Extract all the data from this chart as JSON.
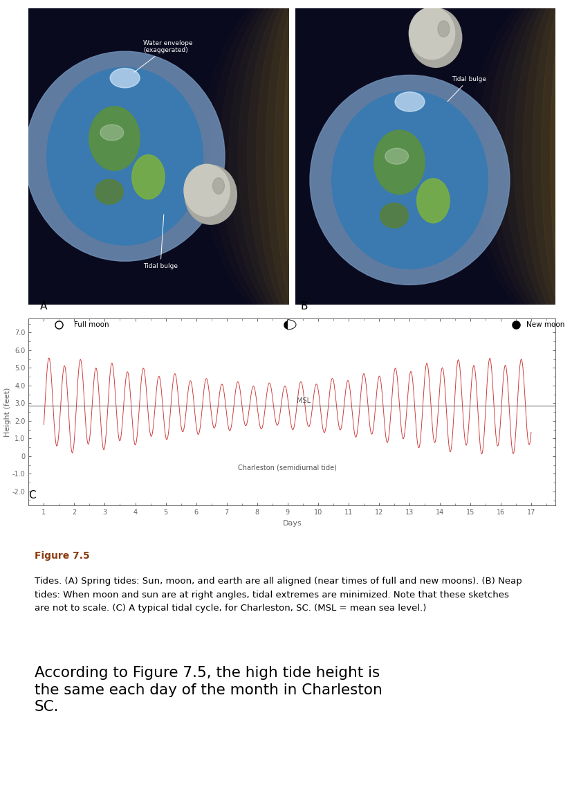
{
  "fig_width": 8.28,
  "fig_height": 11.7,
  "dpi": 100,
  "label_A": "A",
  "label_B": "B",
  "label_C": "C",
  "figure_label": "Figure 7.5",
  "figure_label_color": "#8B3A0F",
  "caption_text": "Tides. (A) Spring tides: Sun, moon, and earth are all aligned (near times of full and new moons). (B) Neap\ntides: When moon and sun are at right angles, tidal extremes are minimized. Note that these sketches\nare not to scale. (C) A typical tidal cycle, for Charleston, SC. (MSL = mean sea level.)",
  "question_text": "According to Figure 7.5, the high tide height is\nthe same each day of the month in Charleston\nSC.",
  "chart_title_full_moon": "Full moon",
  "chart_title_new_moon": "New moon",
  "ylabel": "Height (feet)",
  "xlabel": "Days",
  "msl_label": "MSL",
  "charleston_label": "Charleston (semidiurnal tide)",
  "ytick_labels": [
    "-2.0",
    "-1.0",
    "0",
    "1.0",
    "2.0",
    "3.0",
    "4.0",
    "5.0",
    "6.0",
    "7.0"
  ],
  "ytick_values": [
    -2.0,
    -1.0,
    0.0,
    1.0,
    2.0,
    3.0,
    4.0,
    5.0,
    6.0,
    7.0
  ],
  "xticks": [
    1,
    2,
    3,
    4,
    5,
    6,
    7,
    8,
    9,
    10,
    11,
    12,
    13,
    14,
    15,
    16,
    17
  ],
  "ylim": [
    -2.8,
    7.8
  ],
  "xlim": [
    0.5,
    17.8
  ],
  "tide_color": "#CC3333",
  "msl_line_color": "#888888",
  "msl_value": 2.85,
  "bg_color": "#ffffff",
  "spine_color": "#666666",
  "tick_color": "#666666",
  "full_moon_x": 1.5,
  "half_moon_x": 9.0,
  "new_moon_x": 16.5,
  "moon_y": 7.45,
  "tidal_period": 0.517,
  "spring_neap_period": 14.77,
  "amp_min": 1.2,
  "amp_range": 1.3,
  "diurnal_period": 1.035,
  "diurnal_scale": 0.12
}
